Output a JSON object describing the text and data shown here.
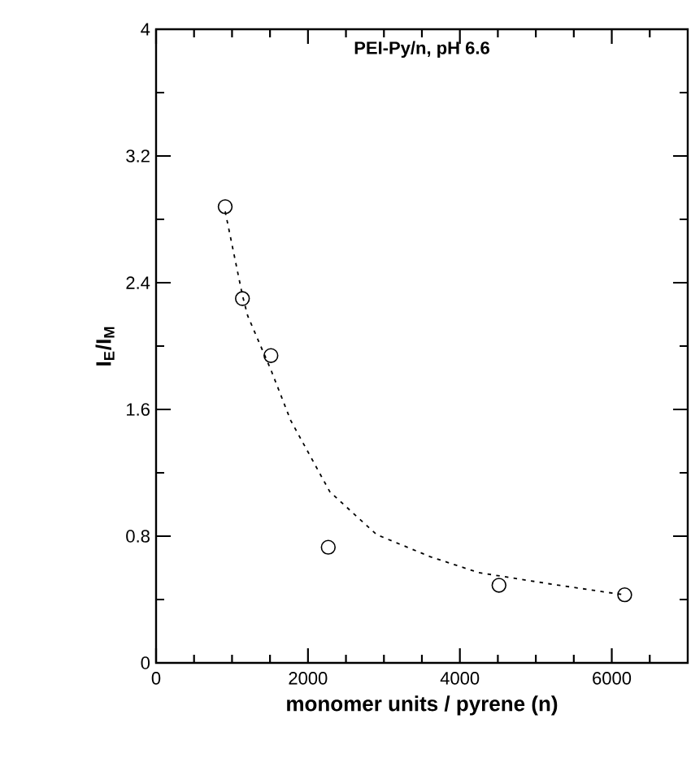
{
  "chart_data": {
    "type": "scatter",
    "title": "PEI-Py/n, pH 6.6",
    "xlabel": "monomer units / pyrene (n)",
    "ylabel": "I$_{E}$/I$_{M}$",
    "xlim": [
      0,
      7000
    ],
    "ylim": [
      0,
      4
    ],
    "xticks": [
      0,
      {
        "value": 500,
        "label": null
      },
      {
        "value": 1000,
        "label": null
      },
      {
        "value": 1500,
        "label": null
      },
      2000,
      {
        "value": 2500,
        "label": null
      },
      {
        "value": 3000,
        "label": null
      },
      {
        "value": 3500,
        "label": null
      },
      4000,
      {
        "value": 4500,
        "label": null
      },
      {
        "value": 5000,
        "label": null
      },
      {
        "value": 5500,
        "label": null
      },
      6000,
      {
        "value": 6500,
        "label": null
      }
    ],
    "yticks": [
      0,
      {
        "value": 0.4,
        "label": null
      },
      0.8,
      {
        "value": 1.2,
        "label": null
      },
      1.6,
      {
        "value": 2.0,
        "label": null
      },
      2.4,
      {
        "value": 2.8,
        "label": null
      },
      3.2,
      {
        "value": 3.6,
        "label": null
      },
      4
    ],
    "grid": false,
    "series": [
      {
        "color": "#000000",
        "marker": "circle",
        "x": [
          910,
          1137,
          1512,
          2267,
          4515,
          6170
        ],
        "values": [
          2.88,
          2.3,
          1.94,
          0.73,
          0.49,
          0.43
        ]
      },
      {
        "type": "line",
        "color": "#000000",
        "marker": "none",
        "line_style": "dashed",
        "x": [
          910,
          1137,
          1207,
          1512,
          1773,
          2288,
          2903,
          3612,
          4248,
          5166,
          6015,
          6170
        ],
        "values": [
          2.85,
          2.32,
          2.19,
          1.85,
          1.53,
          1.08,
          0.81,
          0.67,
          0.57,
          0.5,
          0.44,
          0.43
        ]
      }
    ]
  }
}
